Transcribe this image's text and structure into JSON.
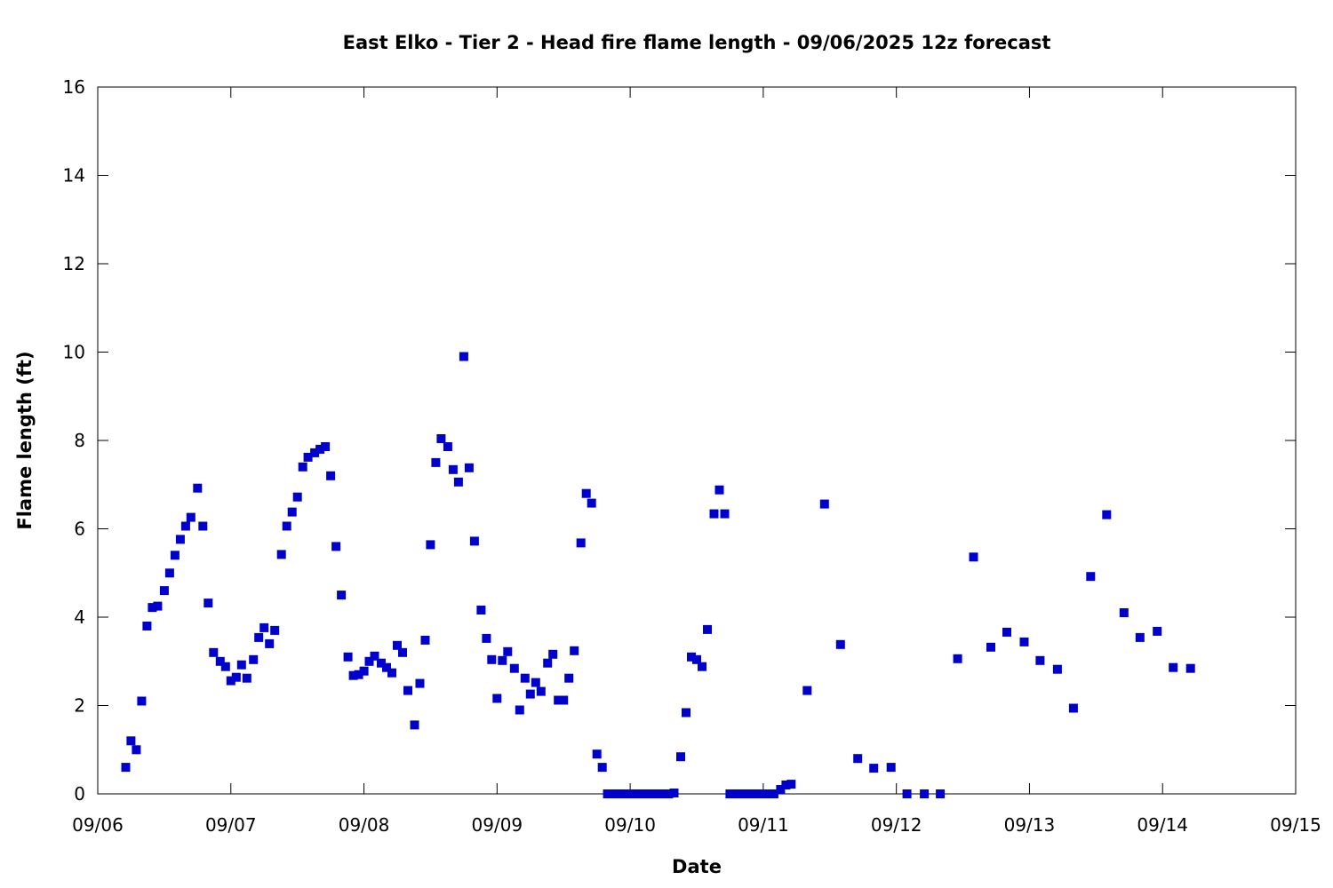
{
  "chart_data": {
    "type": "scatter",
    "title": "East Elko - Tier 2 - Head fire flame length - 09/06/2025 12z forecast",
    "xlabel": "Date",
    "ylabel": "Flame length (ft)",
    "x_tick_labels": [
      "09/06",
      "09/07",
      "09/08",
      "09/09",
      "09/10",
      "09/11",
      "09/12",
      "09/13",
      "09/14",
      "09/15"
    ],
    "y_tick_labels": [
      "0",
      "2",
      "4",
      "6",
      "8",
      "10",
      "12",
      "14",
      "16"
    ],
    "x_domain_days": [
      0,
      9
    ],
    "ylim": [
      0,
      16
    ],
    "grid": false,
    "marker": "square",
    "series_color": "#0000cc",
    "points": [
      [
        0.21,
        0.6
      ],
      [
        0.25,
        1.2
      ],
      [
        0.29,
        1.0
      ],
      [
        0.33,
        2.1
      ],
      [
        0.37,
        3.8
      ],
      [
        0.41,
        4.22
      ],
      [
        0.45,
        4.25
      ],
      [
        0.5,
        4.6
      ],
      [
        0.54,
        5.0
      ],
      [
        0.58,
        5.4
      ],
      [
        0.62,
        5.76
      ],
      [
        0.66,
        6.06
      ],
      [
        0.7,
        6.26
      ],
      [
        0.75,
        6.92
      ],
      [
        0.79,
        6.06
      ],
      [
        0.83,
        4.32
      ],
      [
        0.87,
        3.2
      ],
      [
        0.92,
        3.0
      ],
      [
        0.96,
        2.88
      ],
      [
        1.0,
        2.56
      ],
      [
        1.04,
        2.64
      ],
      [
        1.08,
        2.92
      ],
      [
        1.12,
        2.62
      ],
      [
        1.17,
        3.04
      ],
      [
        1.21,
        3.54
      ],
      [
        1.25,
        3.76
      ],
      [
        1.29,
        3.4
      ],
      [
        1.33,
        3.7
      ],
      [
        1.38,
        5.42
      ],
      [
        1.42,
        6.06
      ],
      [
        1.46,
        6.38
      ],
      [
        1.5,
        6.72
      ],
      [
        1.54,
        7.4
      ],
      [
        1.58,
        7.62
      ],
      [
        1.63,
        7.72
      ],
      [
        1.67,
        7.8
      ],
      [
        1.71,
        7.86
      ],
      [
        1.75,
        7.2
      ],
      [
        1.79,
        5.6
      ],
      [
        1.83,
        4.5
      ],
      [
        1.88,
        3.1
      ],
      [
        1.92,
        2.68
      ],
      [
        1.96,
        2.7
      ],
      [
        2.0,
        2.78
      ],
      [
        2.04,
        3.0
      ],
      [
        2.08,
        3.12
      ],
      [
        2.13,
        2.96
      ],
      [
        2.17,
        2.86
      ],
      [
        2.21,
        2.74
      ],
      [
        2.25,
        3.36
      ],
      [
        2.29,
        3.2
      ],
      [
        2.33,
        2.34
      ],
      [
        2.38,
        1.56
      ],
      [
        2.42,
        2.5
      ],
      [
        2.46,
        3.48
      ],
      [
        2.5,
        5.64
      ],
      [
        2.54,
        7.5
      ],
      [
        2.58,
        8.04
      ],
      [
        2.63,
        7.86
      ],
      [
        2.67,
        7.34
      ],
      [
        2.71,
        7.06
      ],
      [
        2.75,
        9.9
      ],
      [
        2.79,
        7.38
      ],
      [
        2.83,
        5.72
      ],
      [
        2.88,
        4.16
      ],
      [
        2.92,
        3.52
      ],
      [
        2.96,
        3.04
      ],
      [
        3.0,
        2.16
      ],
      [
        3.04,
        3.02
      ],
      [
        3.08,
        3.22
      ],
      [
        3.13,
        2.84
      ],
      [
        3.17,
        1.9
      ],
      [
        3.21,
        2.62
      ],
      [
        3.25,
        2.26
      ],
      [
        3.29,
        2.52
      ],
      [
        3.33,
        2.32
      ],
      [
        3.38,
        2.96
      ],
      [
        3.42,
        3.16
      ],
      [
        3.46,
        2.12
      ],
      [
        3.5,
        2.12
      ],
      [
        3.54,
        2.62
      ],
      [
        3.58,
        3.24
      ],
      [
        3.63,
        5.68
      ],
      [
        3.67,
        6.8
      ],
      [
        3.71,
        6.58
      ],
      [
        3.75,
        0.9
      ],
      [
        3.79,
        0.6
      ],
      [
        3.83,
        0.0
      ],
      [
        3.87,
        0.0
      ],
      [
        3.92,
        0.0
      ],
      [
        3.96,
        0.0
      ],
      [
        4.0,
        0.0
      ],
      [
        4.04,
        0.0
      ],
      [
        4.08,
        0.0
      ],
      [
        4.13,
        0.0
      ],
      [
        4.17,
        0.0
      ],
      [
        4.21,
        0.0
      ],
      [
        4.25,
        0.0
      ],
      [
        4.29,
        0.0
      ],
      [
        4.33,
        0.02
      ],
      [
        4.38,
        0.84
      ],
      [
        4.42,
        1.84
      ],
      [
        4.46,
        3.1
      ],
      [
        4.5,
        3.04
      ],
      [
        4.54,
        2.88
      ],
      [
        4.58,
        3.72
      ],
      [
        4.63,
        6.34
      ],
      [
        4.67,
        6.88
      ],
      [
        4.71,
        6.34
      ],
      [
        4.75,
        0.0
      ],
      [
        4.79,
        0.0
      ],
      [
        4.83,
        0.0
      ],
      [
        4.88,
        0.0
      ],
      [
        4.92,
        0.0
      ],
      [
        4.96,
        0.0
      ],
      [
        5.0,
        0.0
      ],
      [
        5.04,
        0.0
      ],
      [
        5.08,
        0.0
      ],
      [
        5.13,
        0.1
      ],
      [
        5.17,
        0.2
      ],
      [
        5.21,
        0.22
      ],
      [
        5.33,
        2.34
      ],
      [
        5.46,
        6.56
      ],
      [
        5.58,
        3.38
      ],
      [
        5.71,
        0.8
      ],
      [
        5.83,
        0.58
      ],
      [
        5.96,
        0.6
      ],
      [
        6.08,
        0.0
      ],
      [
        6.21,
        0.0
      ],
      [
        6.33,
        0.0
      ],
      [
        6.46,
        3.06
      ],
      [
        6.58,
        5.36
      ],
      [
        6.71,
        3.32
      ],
      [
        6.83,
        3.66
      ],
      [
        6.96,
        3.44
      ],
      [
        7.08,
        3.02
      ],
      [
        7.21,
        2.82
      ],
      [
        7.33,
        1.94
      ],
      [
        7.46,
        4.92
      ],
      [
        7.58,
        6.32
      ],
      [
        7.71,
        4.1
      ],
      [
        7.83,
        3.54
      ],
      [
        7.96,
        3.68
      ],
      [
        8.08,
        2.86
      ],
      [
        8.21,
        2.84
      ]
    ]
  }
}
